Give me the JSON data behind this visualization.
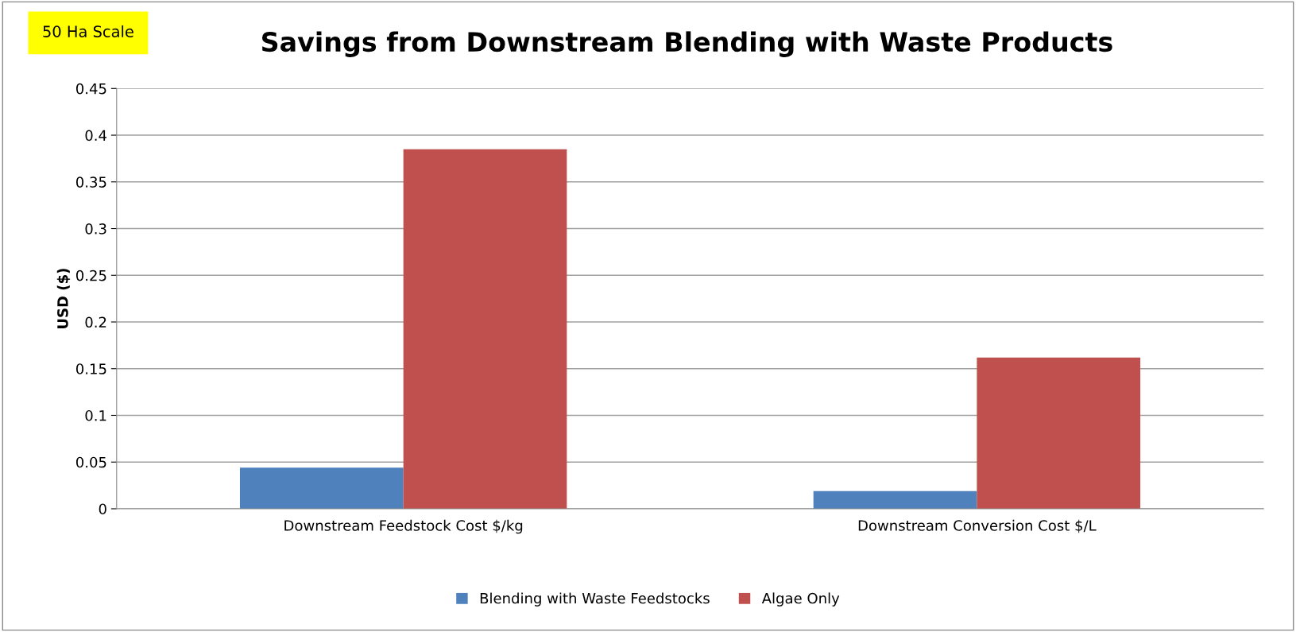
{
  "chart_data": {
    "type": "bar",
    "title": "Savings from Downstream Blending with Waste Products",
    "ylabel": "USD ($)",
    "annotations": [
      "50 Ha Scale"
    ],
    "categories": [
      "Downstream Feedstock Cost $/kg",
      "Downstream Conversion Cost $/L"
    ],
    "series": [
      {
        "name": "Blending with Waste Feedstocks",
        "color": "#4f81bd",
        "values": [
          0.044,
          0.019
        ]
      },
      {
        "name": "Algae Only",
        "color": "#c0504d",
        "values": [
          0.385,
          0.162
        ]
      }
    ],
    "ylim": [
      0,
      0.45
    ],
    "yticks": [
      0,
      0.05,
      0.1,
      0.15,
      0.2,
      0.25,
      0.3,
      0.35,
      0.4,
      0.45
    ],
    "grid": "y",
    "legend": "bottom"
  }
}
